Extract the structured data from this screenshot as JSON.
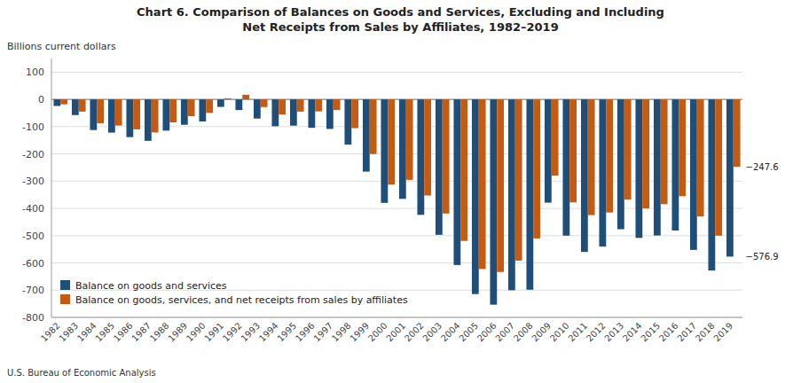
{
  "chart_data": {
    "type": "bar",
    "title": "Chart 6. Comparison of Balances on Goods and Services, Excluding and Including\nNet Receipts from Sales by Affiliates, 1982–2019",
    "y_label": "Billions current dollars",
    "categories": [
      1982,
      1983,
      1984,
      1985,
      1986,
      1987,
      1988,
      1989,
      1990,
      1991,
      1992,
      1993,
      1994,
      1995,
      1996,
      1997,
      1998,
      1999,
      2000,
      2001,
      2002,
      2003,
      2004,
      2005,
      2006,
      2007,
      2008,
      2009,
      2010,
      2011,
      2012,
      2013,
      2014,
      2015,
      2016,
      2017,
      2018,
      2019
    ],
    "series": [
      {
        "name": "Balance on goods and services",
        "color": "#1f4e79",
        "values": [
          -24.2,
          -57.5,
          -112.5,
          -121.9,
          -138.5,
          -152.1,
          -114.6,
          -93.1,
          -80.9,
          -27.5,
          -39.2,
          -70.3,
          -98.5,
          -96.4,
          -104.3,
          -108.3,
          -166.1,
          -265.1,
          -379.8,
          -365.1,
          -423.7,
          -496.9,
          -607.7,
          -714.4,
          -753.3,
          -700.3,
          -698.4,
          -379.0,
          -500.0,
          -559.8,
          -540.2,
          -476.4,
          -508.3,
          -499.4,
          -481.2,
          -552.3,
          -628.0,
          -576.9
        ]
      },
      {
        "name": "Balance on goods, services, and net receipts from sales by affiliates",
        "color": "#c55a11",
        "values": [
          -18.0,
          -44.8,
          -87.5,
          -96.0,
          -109.9,
          -121.3,
          -84.4,
          -61.4,
          -49.5,
          4.0,
          17.0,
          -28.2,
          -55.5,
          -44.9,
          -44.1,
          -38.9,
          -105.6,
          -200.5,
          -313.0,
          -295.3,
          -352.7,
          -418.8,
          -519.3,
          -622.5,
          -633.3,
          -591.6,
          -510.2,
          -280.0,
          -378.0,
          -424.5,
          -415.2,
          -367.5,
          -400.0,
          -384.6,
          -355.2,
          -429.7,
          -500.0,
          -247.6
        ]
      }
    ],
    "ylim": [
      -800,
      150
    ],
    "yticks": [
      100,
      0,
      -100,
      -200,
      -300,
      -400,
      -500,
      -600,
      -700,
      -800
    ],
    "grid": true,
    "legend": "lower left",
    "annotations": [
      {
        "text": "−576.9",
        "x": 2019,
        "y": -576.9
      },
      {
        "text": "−247.6",
        "x": 2019,
        "y": -247.6
      }
    ],
    "source": "U.S. Bureau of Economic Analysis"
  }
}
